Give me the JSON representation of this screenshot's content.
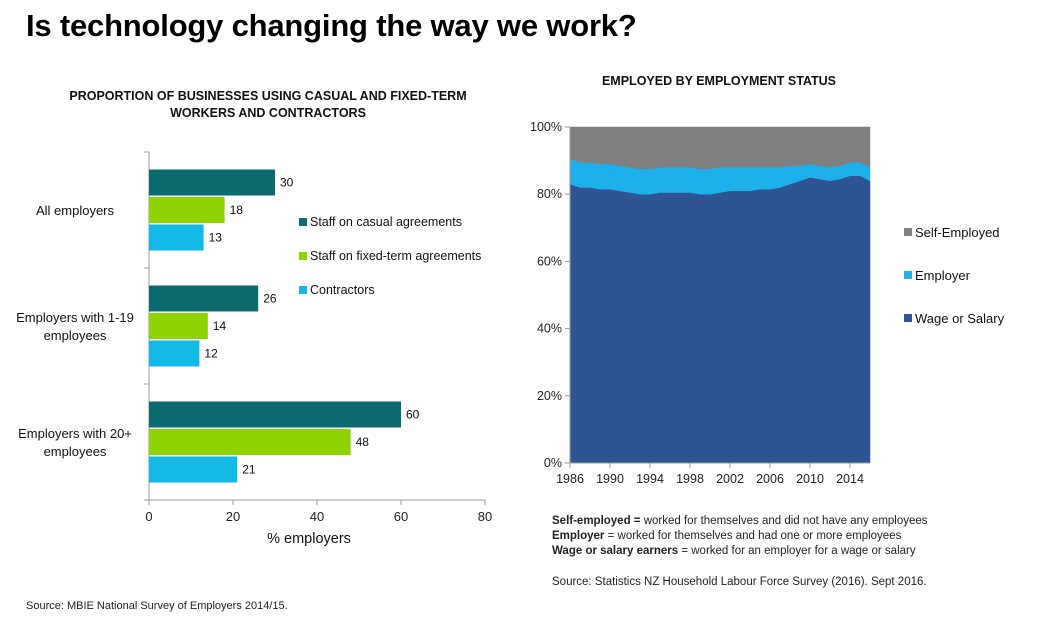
{
  "page_title": "Is technology changing the way we work?",
  "chart_data": [
    {
      "type": "bar",
      "orientation": "horizontal",
      "title": "PROPORTION OF BUSINESSES USING CASUAL AND FIXED-TERM WORKERS AND CONTRACTORS",
      "title_lines": [
        "PROPORTION OF BUSINESSES USING CASUAL AND FIXED-TERM",
        "WORKERS AND CONTRACTORS"
      ],
      "categories": [
        "All employers",
        "Employers with 1-19 employees",
        "Employers with 20+ employees"
      ],
      "category_lines": [
        [
          "All employers"
        ],
        [
          "Employers with 1-19",
          "employees"
        ],
        [
          "Employers with 20+",
          "employees"
        ]
      ],
      "series": [
        {
          "name": "Staff on casual agreements",
          "color": "#0b6b70",
          "values": [
            30,
            26,
            60
          ]
        },
        {
          "name": "Staff on fixed-term agreements",
          "color": "#8ed400",
          "values": [
            18,
            14,
            48
          ]
        },
        {
          "name": "Contractors",
          "color": "#13b9e6",
          "values": [
            13,
            12,
            21
          ]
        }
      ],
      "xlabel": "% employers",
      "xlim": [
        0,
        80
      ],
      "xticks": [
        0,
        20,
        40,
        60,
        80
      ],
      "legend": "center-right",
      "grid": false
    },
    {
      "type": "area",
      "stacked": true,
      "percent": true,
      "title": "EMPLOYED BY EMPLOYMENT STATUS",
      "x": [
        1986,
        1987,
        1988,
        1989,
        1990,
        1991,
        1992,
        1993,
        1994,
        1995,
        1996,
        1997,
        1998,
        1999,
        2000,
        2001,
        2002,
        2003,
        2004,
        2005,
        2006,
        2007,
        2008,
        2009,
        2010,
        2011,
        2012,
        2013,
        2014,
        2015,
        2016
      ],
      "series": [
        {
          "name": "Wage or Salary",
          "color": "#2e5494",
          "values": [
            83,
            82,
            82,
            81.5,
            81.5,
            81,
            80.5,
            80,
            80,
            80.5,
            80.5,
            80.5,
            80.5,
            80,
            80,
            80.5,
            81,
            81,
            81,
            81.5,
            81.5,
            82,
            83,
            84,
            85,
            84.5,
            84,
            84.5,
            85.5,
            85.5,
            84
          ]
        },
        {
          "name": "Employer",
          "color": "#1eb0ec",
          "values": [
            7.5,
            7.5,
            7.5,
            7.5,
            7.5,
            7.5,
            7.5,
            7.5,
            7.5,
            7.5,
            7.5,
            7.5,
            7.5,
            7.5,
            7.5,
            7.5,
            7,
            7,
            7,
            6.5,
            6.5,
            6,
            5.5,
            4.5,
            4,
            4,
            4,
            4,
            4,
            4,
            4
          ]
        },
        {
          "name": "Self-Employed",
          "color": "#7f7f7f",
          "values": [
            9.5,
            10.5,
            10.5,
            11,
            11,
            11.5,
            12,
            12.5,
            12.5,
            12,
            12,
            12,
            12,
            12.5,
            12.5,
            12,
            12,
            12,
            12,
            12,
            12,
            12,
            11.5,
            11.5,
            11,
            11.5,
            12,
            11.5,
            10.5,
            10.5,
            12
          ]
        }
      ],
      "legend_order": [
        "Self-Employed",
        "Employer",
        "Wage or Salary"
      ],
      "ylim": [
        0,
        100
      ],
      "yticks": [
        "0%",
        "20%",
        "40%",
        "60%",
        "80%",
        "100%"
      ],
      "xticks": [
        1986,
        1990,
        1994,
        1998,
        2002,
        2006,
        2010,
        2014
      ],
      "legend": "right",
      "grid": false
    }
  ],
  "definitions": {
    "self_employed_term": "Self-employed =",
    "self_employed_text": " worked for themselves and did not have any employees",
    "employer_term": "Employer",
    "employer_text": " = worked for themselves and had one or more employees",
    "wage_term": "Wage or salary earners",
    "wage_text": " = worked for an employer for a wage or salary"
  },
  "sources": {
    "left": "Source: MBIE National Survey of Employers 2014/15.",
    "right": "Source: Statistics NZ Household Labour Force Survey (2016). Sept 2016."
  }
}
